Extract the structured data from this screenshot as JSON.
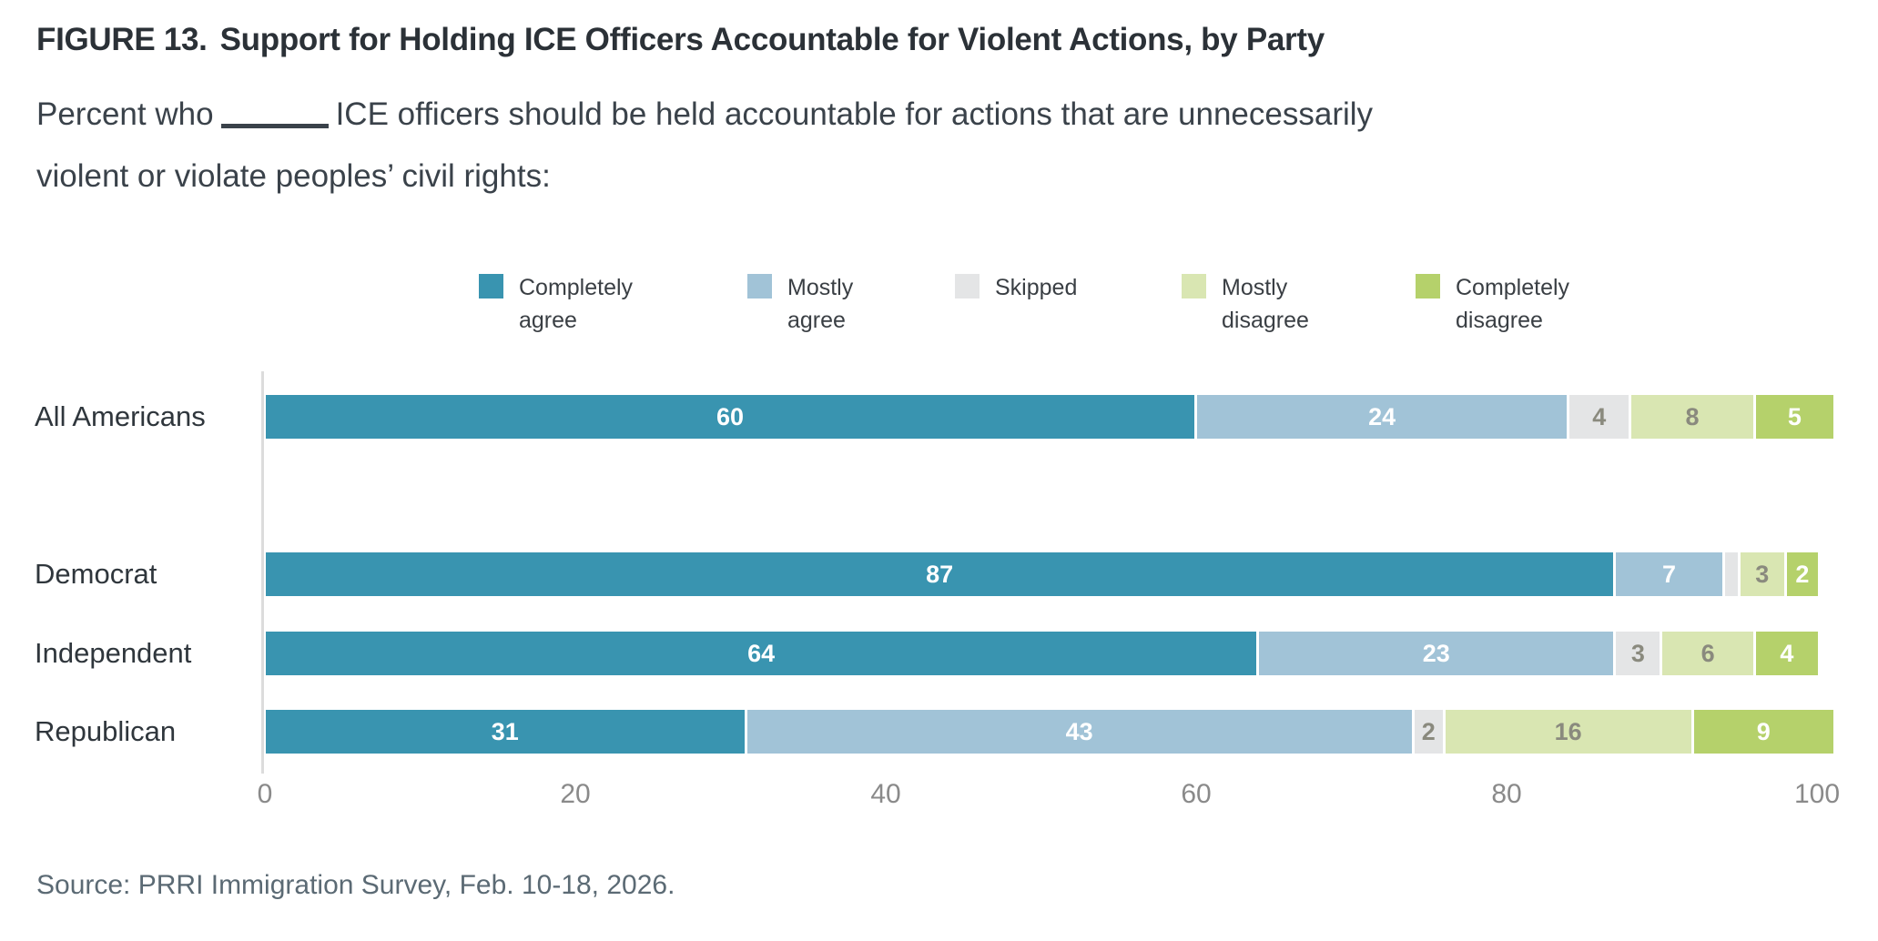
{
  "header": {
    "figure_label": "FIGURE 13.",
    "title": "Support for Holding ICE Officers Accountable for Violent Actions, by Party",
    "subtitle": {
      "prefix": "Percent who",
      "line1_rest": "ICE officers should be held accountable for actions that are unnecessarily",
      "line2": "violent or violate peoples’ civil rights:"
    }
  },
  "chart_data": {
    "type": "bar",
    "orientation": "horizontal",
    "stacked": true,
    "categories": [
      "All Americans",
      "Democrat",
      "Independent",
      "Republican"
    ],
    "series": [
      {
        "name": "Completely agree",
        "color": "#3994b0",
        "label_color": "#ffffff",
        "values": [
          60,
          87,
          64,
          31
        ]
      },
      {
        "name": "Mostly agree",
        "color": "#a1c3d7",
        "label_color": "#ffffff",
        "values": [
          24,
          7,
          23,
          43
        ]
      },
      {
        "name": "Skipped",
        "color": "#e4e5e6",
        "label_color": "#8a8a7e",
        "values": [
          4,
          1,
          3,
          2
        ]
      },
      {
        "name": "Mostly disagree",
        "color": "#d9e6b2",
        "label_color": "#8a8a7e",
        "values": [
          8,
          3,
          6,
          16
        ]
      },
      {
        "name": "Completely disagree",
        "color": "#b5d16b",
        "label_color": "#ffffff",
        "values": [
          5,
          2,
          4,
          9
        ]
      }
    ],
    "x_ticks": [
      0,
      20,
      40,
      60,
      80,
      100
    ],
    "xlim": [
      0,
      100
    ],
    "grid": false,
    "legend_position": "top",
    "hide_value_labels_below": 2
  },
  "source": "Source: PRRI Immigration Survey, Feb. 10-18, 2026."
}
